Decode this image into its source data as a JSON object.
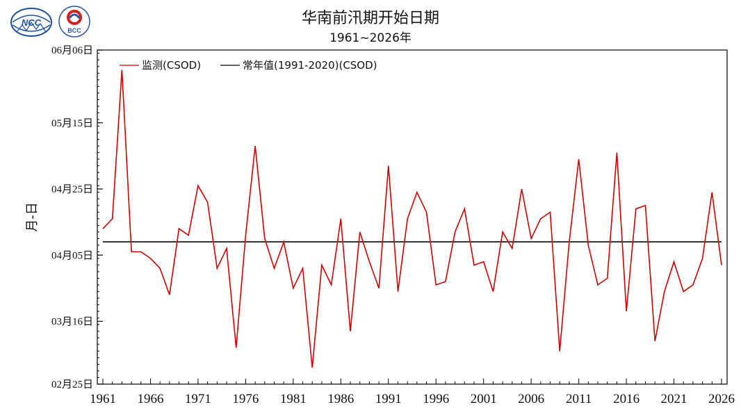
{
  "header": {
    "title": "华南前汛期开始日期",
    "subtitle": "1961~2026年"
  },
  "logos": {
    "ncc_text": "NCC",
    "bcc_text": "BCC"
  },
  "colors": {
    "series": "#cc0000",
    "normal": "#000000",
    "axis": "#000000"
  },
  "chart_data": {
    "type": "line",
    "title": "华南前汛期开始日期",
    "subtitle": "1961~2026年",
    "xlabel": "",
    "ylabel": "月-日",
    "xlim": [
      1961,
      2026
    ],
    "ylim": [
      "02-25",
      "06-06"
    ],
    "ylim_day_of_year": [
      56,
      157
    ],
    "grid": false,
    "legend_position": "top-left",
    "x_ticks": [
      1961,
      1966,
      1971,
      1976,
      1981,
      1986,
      1991,
      1996,
      2001,
      2006,
      2011,
      2016,
      2021,
      2026
    ],
    "y_ticks": [
      {
        "label": "02月25日",
        "day": 56
      },
      {
        "label": "03月16日",
        "day": 75
      },
      {
        "label": "04月05日",
        "day": 95
      },
      {
        "label": "04月25日",
        "day": 115
      },
      {
        "label": "05月15日",
        "day": 135
      },
      {
        "label": "06月06日",
        "day": 157
      }
    ],
    "series": [
      {
        "name": "监测(CSOD)",
        "style": "line",
        "x": [
          1961,
          1962,
          1963,
          1964,
          1965,
          1966,
          1967,
          1968,
          1969,
          1970,
          1971,
          1972,
          1973,
          1974,
          1975,
          1976,
          1977,
          1978,
          1979,
          1980,
          1981,
          1982,
          1983,
          1984,
          1985,
          1986,
          1987,
          1988,
          1989,
          1990,
          1991,
          1992,
          1993,
          1994,
          1995,
          1996,
          1997,
          1998,
          1999,
          2000,
          2001,
          2002,
          2003,
          2004,
          2005,
          2006,
          2007,
          2008,
          2009,
          2010,
          2011,
          2012,
          2013,
          2014,
          2015,
          2016,
          2017,
          2018,
          2019,
          2020,
          2021,
          2022,
          2023,
          2024,
          2025,
          2026
        ],
        "y_day_of_year": [
          103,
          106,
          151,
          96,
          96,
          94,
          91,
          83,
          103,
          101,
          116,
          111,
          91,
          97,
          67,
          101,
          128,
          100,
          91,
          99,
          85,
          91,
          61,
          92,
          86,
          106,
          72,
          102,
          93,
          85,
          122,
          84,
          106,
          114,
          108,
          86,
          87,
          102,
          109,
          92,
          93,
          84,
          102,
          97,
          115,
          100,
          106,
          108,
          66,
          99,
          124,
          98,
          86,
          88,
          126,
          78,
          109,
          110,
          69,
          84,
          93,
          84,
          86,
          94,
          114,
          92
        ]
      },
      {
        "name": "常年值(1991-2020)(CSOD)",
        "style": "horizontal",
        "y_day_of_year": 99
      }
    ]
  }
}
